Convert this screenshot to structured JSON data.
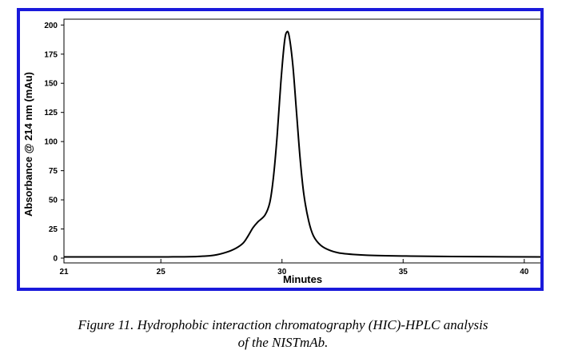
{
  "chart_data": {
    "type": "line",
    "title": "",
    "xlabel": "Minutes",
    "ylabel": "Absorbance @ 214 nm (mAu)",
    "xlim": [
      21,
      40.7
    ],
    "ylim": [
      0,
      205
    ],
    "x_ticks": [
      21,
      25,
      30,
      35,
      40
    ],
    "y_ticks": [
      0,
      25,
      50,
      75,
      100,
      125,
      150,
      175,
      200
    ],
    "grid": false,
    "series": [
      {
        "color": "#000000",
        "points": [
          [
            21.0,
            1.0
          ],
          [
            24.0,
            1.0
          ],
          [
            25.5,
            1.1
          ],
          [
            26.5,
            1.4
          ],
          [
            27.2,
            2.5
          ],
          [
            27.7,
            5.0
          ],
          [
            28.1,
            8.5
          ],
          [
            28.4,
            13.0
          ],
          [
            28.6,
            19.0
          ],
          [
            28.8,
            26.0
          ],
          [
            29.0,
            31.0
          ],
          [
            29.3,
            37.0
          ],
          [
            29.5,
            48.0
          ],
          [
            29.65,
            70.0
          ],
          [
            29.8,
            105.0
          ],
          [
            29.95,
            150.0
          ],
          [
            30.1,
            185.0
          ],
          [
            30.2,
            194.0
          ],
          [
            30.3,
            190.0
          ],
          [
            30.45,
            165.0
          ],
          [
            30.6,
            125.0
          ],
          [
            30.75,
            85.0
          ],
          [
            30.9,
            55.0
          ],
          [
            31.1,
            32.0
          ],
          [
            31.3,
            19.0
          ],
          [
            31.6,
            11.0
          ],
          [
            32.0,
            6.5
          ],
          [
            32.5,
            4.0
          ],
          [
            33.5,
            2.5
          ],
          [
            35.0,
            1.8
          ],
          [
            37.0,
            1.4
          ],
          [
            40.7,
            1.0
          ]
        ]
      }
    ]
  },
  "caption": {
    "line1": "Figure 11.  Hydrophobic interaction chromatography (HIC)-HPLC analysis",
    "line2": "of the NISTmAb."
  }
}
